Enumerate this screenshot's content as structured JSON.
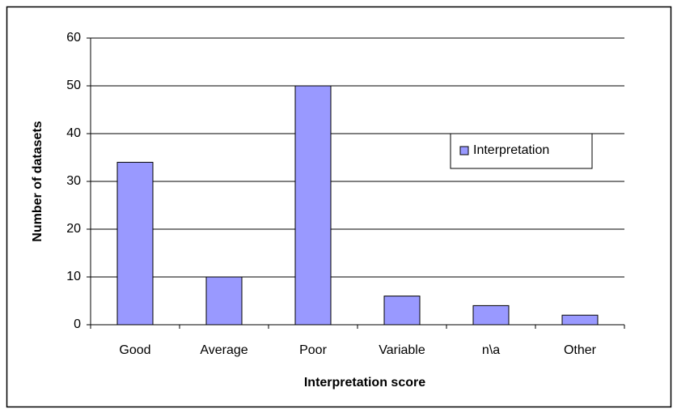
{
  "chart_data": {
    "type": "bar",
    "xlabel": "Interpretation score",
    "ylabel": "Number of datasets",
    "categories": [
      "Good",
      "Average",
      "Poor",
      "Variable",
      "n\\a",
      "Other"
    ],
    "series": [
      {
        "name": "Interpretation",
        "color": "#9999ff",
        "values": [
          34,
          10,
          50,
          6,
          4,
          2
        ]
      }
    ],
    "ylim": [
      0,
      60
    ],
    "yticks": [
      0,
      10,
      20,
      30,
      40,
      50,
      60
    ],
    "grid": true,
    "legend": "right"
  }
}
